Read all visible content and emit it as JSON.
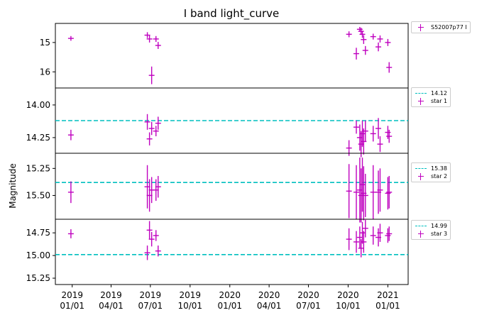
{
  "chart_data": {
    "type": "scatter",
    "title": "I band light_curve",
    "ylabel": "Magnitude",
    "xlabel": "",
    "x_ticks": [
      "2019\n01/01",
      "2019\n04/01",
      "2019\n07/01",
      "2019\n10/01",
      "2020\n01/01",
      "2020\n04/01",
      "2020\n07/01",
      "2020\n10/01",
      "2021\n01/01"
    ],
    "x_tick_dates": [
      "2019-01-01",
      "2019-04-01",
      "2019-07-01",
      "2019-10-01",
      "2020-01-01",
      "2020-04-01",
      "2020-07-01",
      "2020-10-01",
      "2021-01-01"
    ],
    "xlim": [
      "2018-11-23",
      "2021-02-17"
    ],
    "colors": {
      "points": "#bf00bf",
      "reference": "#00bfbf"
    },
    "panels": [
      {
        "name": "S52007p77 I",
        "ylim": [
          16.55,
          14.35
        ],
        "y_inverted": true,
        "yticks": [
          15,
          16
        ],
        "ytick_labels": [
          "15",
          "16"
        ],
        "reference": null,
        "legend": [
          "S52007p77 I"
        ],
        "points": [
          {
            "x": "2018-12-29",
            "y": 14.86,
            "err": 0.08
          },
          {
            "x": "2019-06-24",
            "y": 14.75,
            "err": 0.1
          },
          {
            "x": "2019-06-29",
            "y": 14.88,
            "err": 0.12
          },
          {
            "x": "2019-07-04",
            "y": 16.12,
            "err": 0.3
          },
          {
            "x": "2019-07-14",
            "y": 14.88,
            "err": 0.1
          },
          {
            "x": "2019-07-19",
            "y": 15.1,
            "err": 0.12
          },
          {
            "x": "2020-10-03",
            "y": 14.72,
            "err": 0.1
          },
          {
            "x": "2020-10-20",
            "y": 15.38,
            "err": 0.2
          },
          {
            "x": "2020-10-28",
            "y": 14.55,
            "err": 0.08
          },
          {
            "x": "2020-10-31",
            "y": 14.62,
            "err": 0.12
          },
          {
            "x": "2020-11-03",
            "y": 14.72,
            "err": 0.12
          },
          {
            "x": "2020-11-06",
            "y": 14.9,
            "err": 0.15
          },
          {
            "x": "2020-11-10",
            "y": 15.27,
            "err": 0.15
          },
          {
            "x": "2020-11-28",
            "y": 14.8,
            "err": 0.1
          },
          {
            "x": "2020-12-10",
            "y": 15.15,
            "err": 0.15
          },
          {
            "x": "2020-12-14",
            "y": 14.88,
            "err": 0.12
          },
          {
            "x": "2021-01-01",
            "y": 15.0,
            "err": 0.12
          },
          {
            "x": "2021-01-04",
            "y": 15.85,
            "err": 0.18
          }
        ]
      },
      {
        "name": "star 1",
        "ylim": [
          14.37,
          13.87
        ],
        "y_inverted": true,
        "yticks": [
          14.0,
          14.25
        ],
        "ytick_labels": [
          "14.00",
          "14.25"
        ],
        "reference": 14.12,
        "legend": [
          "14.12",
          "star 1"
        ],
        "points": [
          {
            "x": "2018-12-29",
            "y": 14.23,
            "err": 0.04
          },
          {
            "x": "2019-06-24",
            "y": 14.13,
            "err": 0.06
          },
          {
            "x": "2019-06-29",
            "y": 14.26,
            "err": 0.05
          },
          {
            "x": "2019-07-04",
            "y": 14.18,
            "err": 0.05
          },
          {
            "x": "2019-07-14",
            "y": 14.2,
            "err": 0.04
          },
          {
            "x": "2019-07-19",
            "y": 14.14,
            "err": 0.05
          },
          {
            "x": "2020-10-03",
            "y": 14.33,
            "err": 0.06
          },
          {
            "x": "2020-10-20",
            "y": 14.17,
            "err": 0.05
          },
          {
            "x": "2020-10-28",
            "y": 14.25,
            "err": 0.1
          },
          {
            "x": "2020-10-31",
            "y": 14.3,
            "err": 0.1
          },
          {
            "x": "2020-11-03",
            "y": 14.22,
            "err": 0.1
          },
          {
            "x": "2020-11-06",
            "y": 14.28,
            "err": 0.1
          },
          {
            "x": "2020-11-10",
            "y": 14.2,
            "err": 0.08
          },
          {
            "x": "2020-11-28",
            "y": 14.22,
            "err": 0.06
          },
          {
            "x": "2020-12-10",
            "y": 14.18,
            "err": 0.08
          },
          {
            "x": "2020-12-14",
            "y": 14.3,
            "err": 0.06
          },
          {
            "x": "2021-01-01",
            "y": 14.21,
            "err": 0.05
          },
          {
            "x": "2021-01-04",
            "y": 14.24,
            "err": 0.05
          }
        ]
      },
      {
        "name": "star 2",
        "ylim": [
          15.72,
          15.11
        ],
        "y_inverted": true,
        "yticks": [
          15.25,
          15.5
        ],
        "ytick_labels": [
          "15.25",
          "15.50"
        ],
        "reference": 15.38,
        "legend": [
          "15.38",
          "star 2"
        ],
        "points": [
          {
            "x": "2018-12-29",
            "y": 15.47,
            "err": 0.1
          },
          {
            "x": "2019-06-24",
            "y": 15.42,
            "err": 0.2
          },
          {
            "x": "2019-06-29",
            "y": 15.5,
            "err": 0.15
          },
          {
            "x": "2019-07-04",
            "y": 15.45,
            "err": 0.12
          },
          {
            "x": "2019-07-14",
            "y": 15.45,
            "err": 0.1
          },
          {
            "x": "2019-07-19",
            "y": 15.42,
            "err": 0.1
          },
          {
            "x": "2020-10-03",
            "y": 15.46,
            "err": 0.25
          },
          {
            "x": "2020-10-20",
            "y": 15.47,
            "err": 0.25
          },
          {
            "x": "2020-10-28",
            "y": 15.45,
            "err": 0.3
          },
          {
            "x": "2020-10-31",
            "y": 15.5,
            "err": 0.25
          },
          {
            "x": "2020-11-03",
            "y": 15.4,
            "err": 0.25
          },
          {
            "x": "2020-11-06",
            "y": 15.48,
            "err": 0.25
          },
          {
            "x": "2020-11-10",
            "y": 15.5,
            "err": 0.2
          },
          {
            "x": "2020-11-28",
            "y": 15.47,
            "err": 0.25
          },
          {
            "x": "2020-12-10",
            "y": 15.47,
            "err": 0.2
          },
          {
            "x": "2020-12-14",
            "y": 15.45,
            "err": 0.2
          },
          {
            "x": "2021-01-01",
            "y": 15.48,
            "err": 0.15
          },
          {
            "x": "2021-01-04",
            "y": 15.47,
            "err": 0.15
          }
        ]
      },
      {
        "name": "star 3",
        "ylim": [
          15.32,
          14.6
        ],
        "y_inverted": true,
        "yticks": [
          14.75,
          15.0,
          15.25
        ],
        "ytick_labels": [
          "14.75",
          "15.00",
          "15.25"
        ],
        "reference": 14.99,
        "legend": [
          "14.99",
          "star 3"
        ],
        "points": [
          {
            "x": "2018-12-29",
            "y": 14.76,
            "err": 0.05
          },
          {
            "x": "2019-06-24",
            "y": 14.97,
            "err": 0.08
          },
          {
            "x": "2019-06-29",
            "y": 14.72,
            "err": 0.1
          },
          {
            "x": "2019-07-04",
            "y": 14.82,
            "err": 0.08
          },
          {
            "x": "2019-07-14",
            "y": 14.78,
            "err": 0.06
          },
          {
            "x": "2019-07-19",
            "y": 14.95,
            "err": 0.06
          },
          {
            "x": "2020-10-03",
            "y": 14.82,
            "err": 0.12
          },
          {
            "x": "2020-10-20",
            "y": 14.85,
            "err": 0.12
          },
          {
            "x": "2020-10-28",
            "y": 14.8,
            "err": 0.12
          },
          {
            "x": "2020-10-31",
            "y": 14.92,
            "err": 0.1
          },
          {
            "x": "2020-11-03",
            "y": 14.75,
            "err": 0.12
          },
          {
            "x": "2020-11-06",
            "y": 14.85,
            "err": 0.12
          },
          {
            "x": "2020-11-10",
            "y": 14.7,
            "err": 0.1
          },
          {
            "x": "2020-11-28",
            "y": 14.78,
            "err": 0.1
          },
          {
            "x": "2020-12-10",
            "y": 14.8,
            "err": 0.1
          },
          {
            "x": "2020-12-14",
            "y": 14.75,
            "err": 0.1
          },
          {
            "x": "2021-01-01",
            "y": 14.78,
            "err": 0.08
          },
          {
            "x": "2021-01-04",
            "y": 14.76,
            "err": 0.08
          }
        ]
      }
    ]
  }
}
